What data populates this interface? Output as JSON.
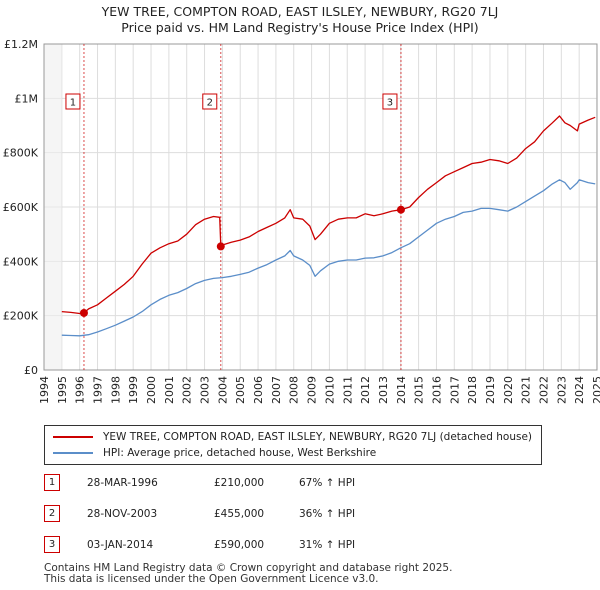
{
  "title_line1": "YEW TREE, COMPTON ROAD, EAST ILSLEY, NEWBURY, RG20 7LJ",
  "title_line2": "Price paid vs. HM Land Registry's House Price Index (HPI)",
  "colors": {
    "property": "#cc0000",
    "hpi": "#5b8ec9",
    "marker_line": "#cc0000",
    "grid": "#dddddd"
  },
  "chart_data": {
    "type": "line",
    "xlim": [
      1994,
      2025
    ],
    "ylim": [
      0,
      1200000
    ],
    "x_ticks": [
      1994,
      1995,
      1996,
      1997,
      1998,
      1999,
      2000,
      2001,
      2002,
      2003,
      2004,
      2005,
      2006,
      2007,
      2008,
      2009,
      2010,
      2011,
      2012,
      2013,
      2014,
      2015,
      2016,
      2017,
      2018,
      2019,
      2020,
      2021,
      2022,
      2023,
      2024,
      2025
    ],
    "x_tick_labels": [
      "1994",
      "1995",
      "1996",
      "1997",
      "1998",
      "1999",
      "2000",
      "2001",
      "2002",
      "2003",
      "2004",
      "2005",
      "2006",
      "2007",
      "2008",
      "2009",
      "2010",
      "2011",
      "2012",
      "2013",
      "2014",
      "2015",
      "2016",
      "2017",
      "2018",
      "2019",
      "2020",
      "2021",
      "2022",
      "2023",
      "2024",
      "2025"
    ],
    "y_ticks": [
      0,
      200000,
      400000,
      600000,
      800000,
      1000000,
      1200000
    ],
    "y_tick_labels": [
      "£0",
      "£200K",
      "£400K",
      "£600K",
      "£800K",
      "£1M",
      "£1.2M"
    ],
    "series": [
      {
        "name": "YEW TREE, COMPTON ROAD, EAST ILSLEY, NEWBURY, RG20 7LJ (detached house)",
        "color": "#cc0000",
        "x": [
          1995.0,
          1995.5,
          1996.0,
          1996.24,
          1996.5,
          1997.0,
          1997.5,
          1998.0,
          1998.5,
          1999.0,
          1999.5,
          2000.0,
          2000.5,
          2001.0,
          2001.5,
          2002.0,
          2002.5,
          2003.0,
          2003.5,
          2003.85,
          2003.91,
          2004.0,
          2004.5,
          2005.0,
          2005.5,
          2006.0,
          2006.5,
          2007.0,
          2007.5,
          2007.8,
          2008.0,
          2008.5,
          2008.9,
          2009.2,
          2009.5,
          2010.0,
          2010.5,
          2011.0,
          2011.5,
          2012.0,
          2012.5,
          2013.0,
          2013.5,
          2014.01,
          2014.5,
          2015.0,
          2015.5,
          2016.0,
          2016.5,
          2017.0,
          2017.5,
          2018.0,
          2018.5,
          2019.0,
          2019.5,
          2020.0,
          2020.5,
          2021.0,
          2021.5,
          2022.0,
          2022.5,
          2022.9,
          2023.2,
          2023.5,
          2023.9,
          2024.0,
          2024.5,
          2024.9
        ],
        "values": [
          215000,
          212000,
          208000,
          210000,
          225000,
          240000,
          265000,
          290000,
          315000,
          345000,
          390000,
          430000,
          450000,
          465000,
          475000,
          500000,
          535000,
          555000,
          565000,
          562000,
          455000,
          460000,
          470000,
          478000,
          490000,
          510000,
          525000,
          540000,
          560000,
          590000,
          560000,
          555000,
          530000,
          480000,
          500000,
          540000,
          555000,
          560000,
          560000,
          575000,
          568000,
          575000,
          585000,
          590000,
          600000,
          635000,
          665000,
          690000,
          715000,
          730000,
          745000,
          760000,
          765000,
          775000,
          770000,
          760000,
          780000,
          815000,
          840000,
          880000,
          910000,
          935000,
          910000,
          900000,
          880000,
          905000,
          920000,
          930000
        ]
      },
      {
        "name": "HPI: Average price, detached house, West Berkshire",
        "color": "#5b8ec9",
        "x": [
          1995.0,
          1995.5,
          1996.0,
          1996.5,
          1997.0,
          1997.5,
          1998.0,
          1998.5,
          1999.0,
          1999.5,
          2000.0,
          2000.5,
          2001.0,
          2001.5,
          2002.0,
          2002.5,
          2003.0,
          2003.5,
          2004.0,
          2004.5,
          2005.0,
          2005.5,
          2006.0,
          2006.5,
          2007.0,
          2007.5,
          2007.8,
          2008.0,
          2008.5,
          2008.9,
          2009.2,
          2009.5,
          2010.0,
          2010.5,
          2011.0,
          2011.5,
          2012.0,
          2012.5,
          2013.0,
          2013.5,
          2014.0,
          2014.5,
          2015.0,
          2015.5,
          2016.0,
          2016.5,
          2017.0,
          2017.5,
          2018.0,
          2018.5,
          2019.0,
          2019.5,
          2020.0,
          2020.5,
          2021.0,
          2021.5,
          2022.0,
          2022.5,
          2022.9,
          2023.2,
          2023.5,
          2023.9,
          2024.0,
          2024.5,
          2024.9
        ],
        "values": [
          128000,
          127000,
          126000,
          130000,
          140000,
          152000,
          165000,
          180000,
          195000,
          215000,
          240000,
          260000,
          275000,
          285000,
          300000,
          318000,
          330000,
          337000,
          340000,
          345000,
          352000,
          360000,
          375000,
          388000,
          405000,
          420000,
          440000,
          420000,
          405000,
          385000,
          345000,
          365000,
          390000,
          400000,
          405000,
          405000,
          412000,
          413000,
          420000,
          432000,
          450000,
          465000,
          490000,
          515000,
          540000,
          555000,
          565000,
          580000,
          585000,
          595000,
          595000,
          590000,
          585000,
          600000,
          620000,
          640000,
          660000,
          685000,
          700000,
          690000,
          665000,
          690000,
          700000,
          690000,
          685000
        ]
      }
    ],
    "transactions": [
      {
        "label": "1",
        "x": 1996.24,
        "value": 210000
      },
      {
        "label": "2",
        "x": 2003.91,
        "value": 455000
      },
      {
        "label": "3",
        "x": 2014.01,
        "value": 590000
      }
    ]
  },
  "legend": {
    "property_label": "YEW TREE, COMPTON ROAD, EAST ILSLEY, NEWBURY, RG20 7LJ (detached house)",
    "hpi_label": "HPI: Average price, detached house, West Berkshire"
  },
  "transactions_table": [
    {
      "num": "1",
      "date": "28-MAR-1996",
      "price": "£210,000",
      "hpi": "67% ↑ HPI"
    },
    {
      "num": "2",
      "date": "28-NOV-2003",
      "price": "£455,000",
      "hpi": "36% ↑ HPI"
    },
    {
      "num": "3",
      "date": "03-JAN-2014",
      "price": "£590,000",
      "hpi": "31% ↑ HPI"
    }
  ],
  "footer_line1": "Contains HM Land Registry data © Crown copyright and database right 2025.",
  "footer_line2": "This data is licensed under the Open Government Licence v3.0."
}
